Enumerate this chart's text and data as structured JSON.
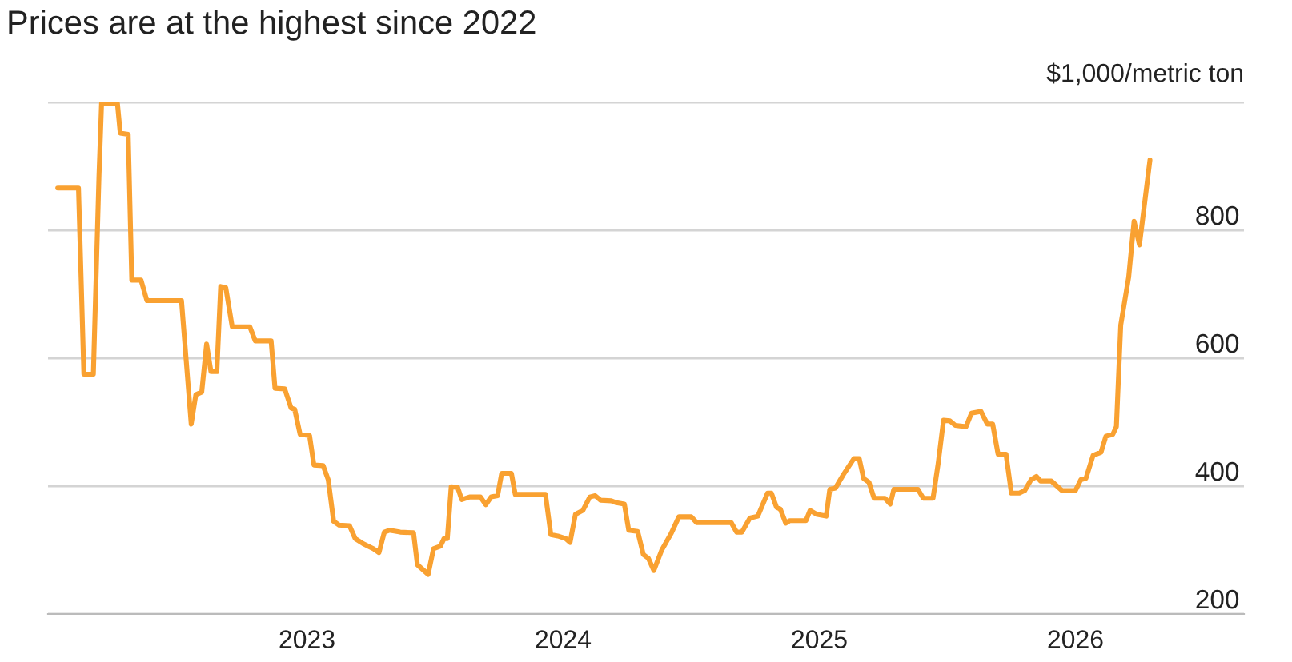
{
  "chart_data": {
    "type": "line",
    "title": "Prices are at the highest since 2022",
    "ylabel": "$1,000/metric ton",
    "x": [
      2022.027,
      2022.108,
      2022.129,
      2022.166,
      2022.188,
      2022.198,
      2022.26,
      2022.271,
      2022.302,
      2022.316,
      2022.352,
      2022.375,
      2022.51,
      2022.548,
      2022.566,
      2022.589,
      2022.608,
      2022.625,
      2022.648,
      2022.663,
      2022.683,
      2022.708,
      2022.777,
      2022.798,
      2022.86,
      2022.875,
      2022.913,
      2022.938,
      2022.952,
      2022.973,
      2023.01,
      2023.027,
      2023.063,
      2023.083,
      2023.104,
      2023.125,
      2023.166,
      2023.188,
      2023.219,
      2023.26,
      2023.281,
      2023.302,
      2023.323,
      2023.364,
      2023.416,
      2023.431,
      2023.473,
      2023.494,
      2023.521,
      2023.535,
      2023.548,
      2023.563,
      2023.588,
      2023.604,
      2023.635,
      2023.677,
      2023.698,
      2023.719,
      2023.744,
      2023.76,
      2023.798,
      2023.813,
      2023.931,
      2023.952,
      2023.979,
      2024.01,
      2024.027,
      2024.048,
      2024.077,
      2024.104,
      2024.125,
      2024.146,
      2024.188,
      2024.208,
      2024.239,
      2024.256,
      2024.291,
      2024.313,
      2024.333,
      2024.354,
      2024.385,
      2024.423,
      2024.452,
      2024.5,
      2024.521,
      2024.656,
      2024.677,
      2024.698,
      2024.729,
      2024.76,
      2024.798,
      2024.813,
      2024.833,
      2024.848,
      2024.869,
      2024.885,
      2024.948,
      2024.964,
      2024.989,
      2025.027,
      2025.041,
      2025.063,
      2025.094,
      2025.135,
      2025.156,
      2025.173,
      2025.194,
      2025.214,
      2025.256,
      2025.277,
      2025.291,
      2025.385,
      2025.406,
      2025.444,
      2025.464,
      2025.485,
      2025.51,
      2025.531,
      2025.573,
      2025.594,
      2025.631,
      2025.656,
      2025.677,
      2025.698,
      2025.729,
      2025.75,
      2025.781,
      2025.802,
      2025.827,
      2025.848,
      2025.864,
      2025.906,
      2025.948,
      2026.0,
      2026.021,
      2026.041,
      2026.069,
      2026.1,
      2026.119,
      2026.146,
      2026.16,
      2026.177,
      2026.208,
      2026.229,
      2026.25,
      2026.291
    ],
    "series": [
      {
        "color": "#f9a131",
        "values": [
          866,
          866,
          575,
          575,
          885,
          998,
          998,
          952,
          950,
          722,
          722,
          690,
          690,
          497,
          543,
          547,
          622,
          579,
          579,
          712,
          710,
          649,
          649,
          627,
          627,
          553,
          552,
          522,
          520,
          481,
          479,
          433,
          432,
          410,
          345,
          339,
          338,
          318,
          310,
          302,
          296,
          328,
          331,
          328,
          327,
          277,
          262,
          302,
          306,
          318,
          318,
          399,
          398,
          379,
          383,
          383,
          371,
          383,
          385,
          420,
          420,
          387,
          387,
          324,
          322,
          318,
          312,
          356,
          362,
          383,
          385,
          378,
          377,
          374,
          372,
          331,
          329,
          293,
          287,
          268,
          300,
          327,
          352,
          352,
          343,
          343,
          328,
          328,
          350,
          353,
          389,
          389,
          367,
          364,
          342,
          346,
          346,
          362,
          356,
          353,
          395,
          397,
          418,
          443,
          443,
          412,
          406,
          381,
          381,
          372,
          395,
          395,
          381,
          381,
          435,
          503,
          502,
          495,
          493,
          514,
          517,
          497,
          497,
          450,
          450,
          389,
          389,
          393,
          410,
          415,
          408,
          408,
          393,
          393,
          410,
          412,
          448,
          453,
          478,
          481,
          493,
          652,
          727,
          814,
          777,
          910
        ]
      }
    ],
    "xlim": [
      2021.989,
      2026.658
    ],
    "xticks": [
      2023,
      2024,
      2025,
      2026
    ],
    "ylim": [
      200,
      1000
    ],
    "yticks": [
      200,
      400,
      600,
      800,
      {
        "value": 1000,
        "label": null
      }
    ],
    "grid": "y",
    "legend": false,
    "marker": "none",
    "line_style": "solid"
  }
}
